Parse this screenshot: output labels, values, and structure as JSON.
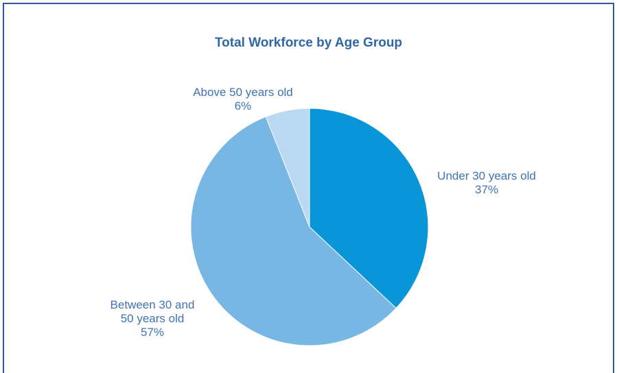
{
  "chart_data": {
    "type": "pie",
    "title": "Total Workforce by Age Group",
    "slices": [
      {
        "label_lines": [
          "Under 30 years old"
        ],
        "value": 37,
        "value_label": "37%",
        "color": "#0996d8"
      },
      {
        "label_lines": [
          "Between 30 and",
          "50 years old"
        ],
        "value": 57,
        "value_label": "57%",
        "color": "#78b6e3"
      },
      {
        "label_lines": [
          "Above 50 years old"
        ],
        "value": 6,
        "value_label": "6%",
        "color": "#bad8f1"
      }
    ],
    "start_angle": "12 o'clock",
    "direction": "clockwise",
    "legend": "none"
  }
}
